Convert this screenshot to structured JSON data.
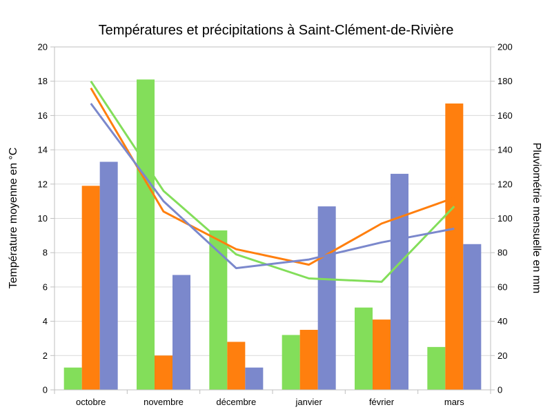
{
  "chart_data": {
    "type": "bar",
    "title": "Températures et précipitations à Saint-Clément-de-Rivière",
    "categories": [
      "octobre",
      "novembre",
      "décembre",
      "janvier",
      "février",
      "mars"
    ],
    "y_left": {
      "label": "Température moyenne en °C",
      "min": 0,
      "max": 20,
      "step": 2
    },
    "y_right": {
      "label": "Pluviométrie mensuelle en mm",
      "min": 0,
      "max": 200,
      "step": 20
    },
    "bar_series": [
      {
        "color": "#83de5a",
        "axis": "right",
        "values": [
          13,
          181,
          93,
          32,
          48,
          25
        ]
      },
      {
        "color": "#ff7f0e",
        "axis": "right",
        "values": [
          119,
          20,
          28,
          35,
          41,
          167
        ]
      },
      {
        "color": "#7b88cc",
        "axis": "right",
        "values": [
          133,
          67,
          13,
          107,
          126,
          85
        ]
      }
    ],
    "line_series": [
      {
        "color": "#83de5a",
        "axis": "left",
        "values": [
          18.0,
          11.6,
          7.9,
          6.5,
          6.3,
          10.7
        ]
      },
      {
        "color": "#ff7f0e",
        "axis": "left",
        "values": [
          17.6,
          10.4,
          8.2,
          7.3,
          9.7,
          11.2
        ]
      },
      {
        "color": "#7b88cc",
        "axis": "left",
        "values": [
          16.7,
          11.0,
          7.1,
          7.6,
          8.6,
          9.4
        ]
      }
    ],
    "grid": true,
    "legend": "none"
  }
}
